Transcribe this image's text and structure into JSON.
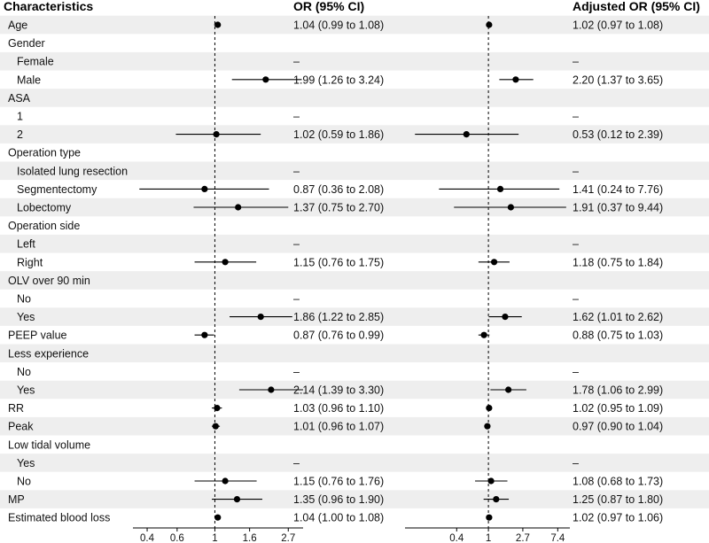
{
  "headers": {
    "characteristics": "Characteristics",
    "or": "OR (95% CI)",
    "adjusted_or": "Adjusted OR (95% CI)"
  },
  "colors": {
    "stripe": "#eeeeee",
    "text": "#111111",
    "line": "#000000"
  },
  "chart_data": {
    "type": "forest",
    "panels": [
      {
        "name": "OR (95% CI)",
        "scale": "log",
        "xlim": [
          0.33,
          3.3
        ],
        "reference": 1,
        "ticks": [
          0.4,
          0.6,
          1,
          1.6,
          2.7
        ],
        "tick_labels": [
          "0.4",
          "0.6",
          "1",
          "1.6",
          "2.7"
        ]
      },
      {
        "name": "Adjusted OR (95% CI)",
        "scale": "log",
        "xlim": [
          0.09,
          10.5
        ],
        "reference": 1,
        "ticks": [
          0.4,
          1,
          2.7,
          7.4
        ],
        "tick_labels": [
          "0.4",
          "1",
          "2.7",
          "7.4"
        ]
      }
    ],
    "rows": [
      {
        "label": "Age",
        "indent": false,
        "or_text": "1.04 (0.99 to 1.08)",
        "or": [
          1.04,
          0.99,
          1.08
        ],
        "adj_text": "1.02 (0.97 to 1.08)",
        "adj": [
          1.02,
          0.97,
          1.08
        ]
      },
      {
        "label": "Gender",
        "indent": false,
        "or_text": "",
        "or": null,
        "adj_text": "",
        "adj": null
      },
      {
        "label": "Female",
        "indent": true,
        "or_text": "–",
        "or": null,
        "adj_text": "–",
        "adj": null
      },
      {
        "label": "Male",
        "indent": true,
        "or_text": "1.99 (1.26 to 3.24)",
        "or": [
          1.99,
          1.26,
          3.24
        ],
        "adj_text": "2.20 (1.37 to 3.65)",
        "adj": [
          2.2,
          1.37,
          3.65
        ]
      },
      {
        "label": "ASA",
        "indent": false,
        "or_text": "",
        "or": null,
        "adj_text": "",
        "adj": null
      },
      {
        "label": "1",
        "indent": true,
        "or_text": "–",
        "or": null,
        "adj_text": "–",
        "adj": null
      },
      {
        "label": "2",
        "indent": true,
        "or_text": "1.02 (0.59 to 1.86)",
        "or": [
          1.02,
          0.59,
          1.86
        ],
        "adj_text": "0.53 (0.12 to 2.39)",
        "adj": [
          0.53,
          0.12,
          2.39
        ]
      },
      {
        "label": "Operation type",
        "indent": false,
        "or_text": "",
        "or": null,
        "adj_text": "",
        "adj": null
      },
      {
        "label": "Isolated lung resection",
        "indent": true,
        "or_text": "–",
        "or": null,
        "adj_text": "–",
        "adj": null
      },
      {
        "label": "Segmentectomy",
        "indent": true,
        "or_text": "0.87 (0.36 to 2.08)",
        "or": [
          0.87,
          0.36,
          2.08
        ],
        "adj_text": "1.41 (0.24 to 7.76)",
        "adj": [
          1.41,
          0.24,
          7.76
        ]
      },
      {
        "label": "Lobectomy",
        "indent": true,
        "or_text": "1.37 (0.75 to 2.70)",
        "or": [
          1.37,
          0.75,
          2.7
        ],
        "adj_text": "1.91 (0.37 to 9.44)",
        "adj": [
          1.91,
          0.37,
          9.44
        ]
      },
      {
        "label": "Operation side",
        "indent": false,
        "or_text": "",
        "or": null,
        "adj_text": "",
        "adj": null
      },
      {
        "label": "Left",
        "indent": true,
        "or_text": "–",
        "or": null,
        "adj_text": "–",
        "adj": null
      },
      {
        "label": "Right",
        "indent": true,
        "or_text": "1.15 (0.76 to 1.75)",
        "or": [
          1.15,
          0.76,
          1.75
        ],
        "adj_text": "1.18 (0.75 to 1.84)",
        "adj": [
          1.18,
          0.75,
          1.84
        ]
      },
      {
        "label": "OLV over 90 min",
        "indent": false,
        "or_text": "",
        "or": null,
        "adj_text": "",
        "adj": null
      },
      {
        "label": "No",
        "indent": true,
        "or_text": "–",
        "or": null,
        "adj_text": "–",
        "adj": null
      },
      {
        "label": "Yes",
        "indent": true,
        "or_text": "1.86 (1.22 to 2.85)",
        "or": [
          1.86,
          1.22,
          2.85
        ],
        "adj_text": "1.62 (1.01 to 2.62)",
        "adj": [
          1.62,
          1.01,
          2.62
        ]
      },
      {
        "label": "PEEP value",
        "indent": false,
        "or_text": "0.87 (0.76 to 0.99)",
        "or": [
          0.87,
          0.76,
          0.99
        ],
        "adj_text": "0.88 (0.75 to 1.03)",
        "adj": [
          0.88,
          0.75,
          1.03
        ]
      },
      {
        "label": "Less experience",
        "indent": false,
        "or_text": "",
        "or": null,
        "adj_text": "",
        "adj": null
      },
      {
        "label": "No",
        "indent": true,
        "or_text": "–",
        "or": null,
        "adj_text": "–",
        "adj": null
      },
      {
        "label": "Yes",
        "indent": true,
        "or_text": "2.14 (1.39 to 3.30)",
        "or": [
          2.14,
          1.39,
          3.3
        ],
        "adj_text": "1.78 (1.06 to 2.99)",
        "adj": [
          1.78,
          1.06,
          2.99
        ]
      },
      {
        "label": "RR",
        "indent": false,
        "or_text": "1.03 (0.96 to 1.10)",
        "or": [
          1.03,
          0.96,
          1.1
        ],
        "adj_text": "1.02 (0.95 to 1.09)",
        "adj": [
          1.02,
          0.95,
          1.09
        ]
      },
      {
        "label": "Peak",
        "indent": false,
        "or_text": "1.01 (0.96 to 1.07)",
        "or": [
          1.01,
          0.96,
          1.07
        ],
        "adj_text": "0.97 (0.90 to 1.04)",
        "adj": [
          0.97,
          0.9,
          1.04
        ]
      },
      {
        "label": "Low tidal volume",
        "indent": false,
        "or_text": "",
        "or": null,
        "adj_text": "",
        "adj": null
      },
      {
        "label": "Yes",
        "indent": true,
        "or_text": "–",
        "or": null,
        "adj_text": "–",
        "adj": null
      },
      {
        "label": "No",
        "indent": true,
        "or_text": "1.15 (0.76 to 1.76)",
        "or": [
          1.15,
          0.76,
          1.76
        ],
        "adj_text": "1.08 (0.68 to 1.73)",
        "adj": [
          1.08,
          0.68,
          1.73
        ]
      },
      {
        "label": "MP",
        "indent": false,
        "or_text": "1.35 (0.96 to 1.90)",
        "or": [
          1.35,
          0.96,
          1.9
        ],
        "adj_text": "1.25 (0.87 to 1.80)",
        "adj": [
          1.25,
          0.87,
          1.8
        ]
      },
      {
        "label": "Estimated blood loss",
        "indent": false,
        "or_text": "1.04 (1.00 to 1.08)",
        "or": [
          1.04,
          1.0,
          1.08
        ],
        "adj_text": "1.02 (0.97 to 1.06)",
        "adj": [
          1.02,
          0.97,
          1.06
        ]
      }
    ]
  }
}
